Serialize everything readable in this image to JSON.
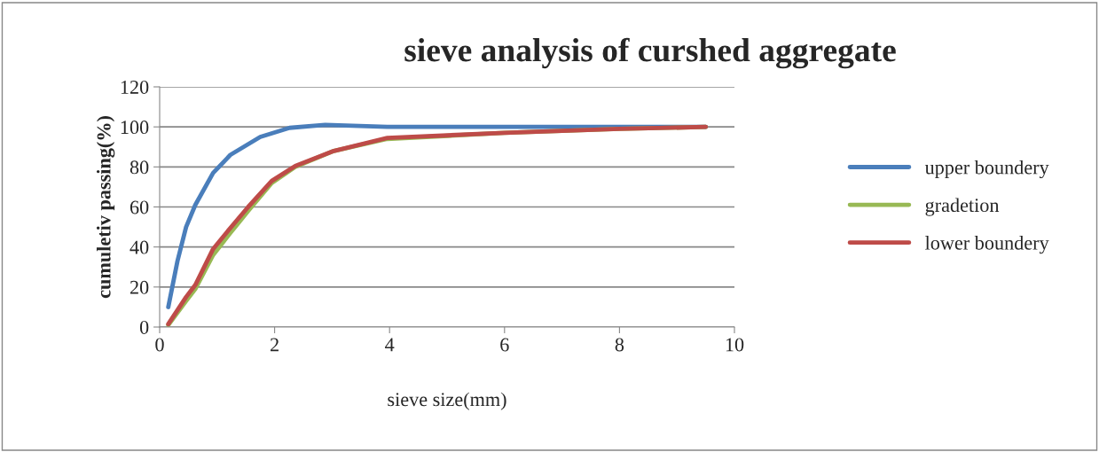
{
  "chart_data": {
    "type": "line",
    "title": "sieve analysis of curshed aggregate",
    "xlabel": "sieve size(mm)",
    "ylabel": "cumuletiv passing(%)",
    "series": [
      {
        "name": "upper boundery",
        "color": "#4a7ebb",
        "x": [
          0.15,
          0.31,
          0.46,
          0.62,
          0.93,
          1.23,
          1.75,
          2.26,
          2.88,
          3.96,
          6,
          8,
          9.5
        ],
        "values": [
          10,
          33,
          50,
          61,
          77,
          86,
          95,
          99.5,
          101,
          100,
          100,
          100,
          100
        ]
      },
      {
        "name": "gradetion",
        "color": "#98b954",
        "x": [
          0.15,
          0.46,
          0.62,
          0.93,
          1.23,
          1.54,
          1.95,
          2.36,
          3.03,
          3.96,
          6,
          8,
          9.5
        ],
        "values": [
          1,
          13,
          19,
          36,
          47,
          58,
          72,
          80,
          88,
          94,
          97,
          99,
          100
        ]
      },
      {
        "name": "lower boundery",
        "color": "#be4b48",
        "x": [
          0.15,
          0.46,
          0.62,
          0.93,
          1.23,
          1.54,
          1.95,
          2.36,
          3.03,
          3.96,
          6,
          8,
          9.5
        ],
        "values": [
          1.5,
          15,
          21,
          39,
          49.5,
          60,
          73,
          80.5,
          88,
          94.5,
          97,
          99,
          100
        ]
      }
    ],
    "xlim": [
      0,
      10
    ],
    "xticks": [
      0,
      2,
      4,
      6,
      8,
      10
    ],
    "ylim": [
      0,
      120
    ],
    "yticks": [
      0,
      20,
      40,
      60,
      80,
      100,
      120
    ],
    "grid": "y",
    "legend": "right",
    "marker": "none",
    "line_style": "solid"
  }
}
